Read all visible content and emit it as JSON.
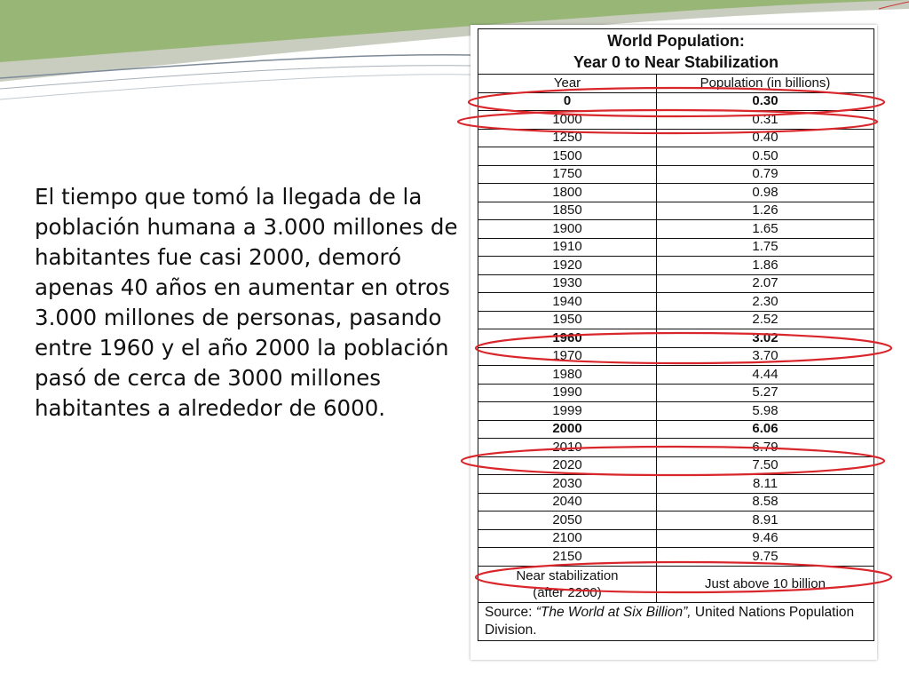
{
  "body_text": "El tiempo que tomó la llegada de la población humana a 3.000 millones de habitantes fue casi 2000, demoró apenas 40 años en aumentar en otros 3.000 millones de personas, pasando entre 1960 y el año 2000 la población pasó de cerca de 3000 millones habitantes a alrededor de 6000.",
  "table": {
    "title_line1": "World Population:",
    "title_line2": "Year 0 to Near Stabilization",
    "col_year": "Year",
    "col_population": "Population (in billions)",
    "rows": [
      {
        "year": "0",
        "pop": "0.30",
        "bold": true
      },
      {
        "year": "1000",
        "pop": "0.31"
      },
      {
        "year": "1250",
        "pop": "0.40"
      },
      {
        "year": "1500",
        "pop": "0.50"
      },
      {
        "year": "1750",
        "pop": "0.79"
      },
      {
        "year": "1800",
        "pop": "0.98"
      },
      {
        "year": "1850",
        "pop": "1.26"
      },
      {
        "year": "1900",
        "pop": "1.65"
      },
      {
        "year": "1910",
        "pop": "1.75"
      },
      {
        "year": "1920",
        "pop": "1.86"
      },
      {
        "year": "1930",
        "pop": "2.07"
      },
      {
        "year": "1940",
        "pop": "2.30"
      },
      {
        "year": "1950",
        "pop": "2.52"
      },
      {
        "year": "1960",
        "pop": "3.02",
        "bold": true
      },
      {
        "year": "1970",
        "pop": "3.70"
      },
      {
        "year": "1980",
        "pop": "4.44"
      },
      {
        "year": "1990",
        "pop": "5.27"
      },
      {
        "year": "1999",
        "pop": "5.98"
      },
      {
        "year": "2000",
        "pop": "6.06",
        "bold": true
      },
      {
        "year": "2010",
        "pop": "6.79"
      },
      {
        "year": "2020",
        "pop": "7.50"
      },
      {
        "year": "2030",
        "pop": "8.11"
      },
      {
        "year": "2040",
        "pop": "8.58"
      },
      {
        "year": "2050",
        "pop": "8.91"
      },
      {
        "year": "2100",
        "pop": "9.46"
      },
      {
        "year": "2150",
        "pop": "9.75"
      }
    ],
    "near_year_line1": "Near stabilization",
    "near_year_line2": "(after 2200)",
    "near_pop": "Just above 10 billion",
    "source_label": "Source:",
    "source_title": "“The World at Six Billion”,",
    "source_org": "United Nations Population Division."
  },
  "colors": {
    "ring": "#d9262b",
    "accent_green": "#8fb36a",
    "accent_gray": "#b9bfae"
  }
}
